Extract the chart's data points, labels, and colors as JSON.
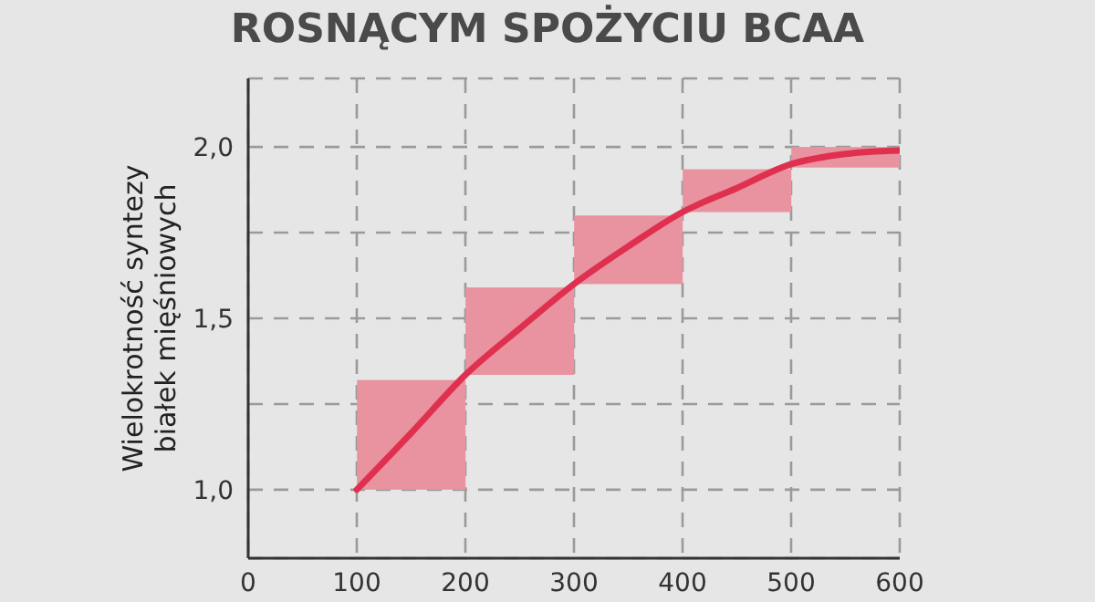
{
  "chart_data": {
    "type": "line",
    "title": "ROSNĄCYM SPOŻYCIU BCAA",
    "ylabel": "Wielokrotność syntezy\nbiałek mięśniowych",
    "xlim": [
      0,
      600
    ],
    "xticks": [
      0,
      100,
      200,
      300,
      400,
      500,
      600
    ],
    "ylim": [
      0.8,
      2.2
    ],
    "yticks": [
      {
        "value": 1.0,
        "label": "1,0"
      },
      {
        "value": 1.25,
        "label": null
      },
      {
        "value": 1.5,
        "label": "1,5"
      },
      {
        "value": 1.75,
        "label": null
      },
      {
        "value": 2.0,
        "label": "2,0"
      }
    ],
    "grid": true,
    "line_style": "solid",
    "series": [
      {
        "type": "bar",
        "color": "#e8939f",
        "x": [
          150,
          250,
          350,
          450,
          550
        ],
        "base": [
          1.0,
          1.335,
          1.6,
          1.81,
          1.94
        ],
        "values": [
          0.32,
          0.255,
          0.2,
          0.125,
          0.06
        ]
      },
      {
        "color": "#e0304f",
        "x": [
          100,
          150,
          200,
          250,
          300,
          350,
          400,
          450,
          500,
          550,
          600
        ],
        "values": [
          1.0,
          1.165,
          1.335,
          1.47,
          1.6,
          1.71,
          1.81,
          1.88,
          1.95,
          1.98,
          1.99
        ]
      }
    ]
  }
}
